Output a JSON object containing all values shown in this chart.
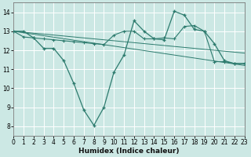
{
  "xlabel": "Humidex (Indice chaleur)",
  "xlim": [
    0,
    23
  ],
  "ylim": [
    7.5,
    14.5
  ],
  "yticks": [
    8,
    9,
    10,
    11,
    12,
    13,
    14
  ],
  "xticks": [
    0,
    1,
    2,
    3,
    4,
    5,
    6,
    7,
    8,
    9,
    10,
    11,
    12,
    13,
    14,
    15,
    16,
    17,
    18,
    19,
    20,
    21,
    22,
    23
  ],
  "bg_color": "#cce8e4",
  "line_color": "#2d7b6e",
  "grid_color": "#ffffff",
  "line1_x": [
    0,
    1,
    2,
    3,
    4,
    5,
    6,
    7,
    8,
    9,
    10,
    11,
    12,
    13,
    14,
    15,
    16,
    17,
    18,
    19,
    20,
    21,
    22,
    23
  ],
  "line1_y": [
    13.0,
    13.0,
    12.65,
    12.1,
    12.1,
    11.45,
    10.25,
    8.85,
    8.05,
    9.0,
    10.85,
    11.75,
    13.55,
    13.0,
    12.6,
    12.55,
    14.05,
    13.85,
    13.1,
    13.0,
    12.35,
    11.45,
    11.3,
    11.3
  ],
  "line2_x": [
    0,
    1,
    2,
    3,
    4,
    5,
    6,
    7,
    8,
    9,
    10,
    11,
    12,
    13,
    14,
    15,
    16,
    17,
    18,
    19,
    20,
    21,
    22,
    23
  ],
  "line2_y": [
    13.0,
    12.7,
    12.65,
    12.6,
    12.55,
    12.5,
    12.45,
    12.4,
    12.35,
    12.3,
    12.8,
    13.0,
    13.0,
    12.6,
    12.6,
    12.65,
    12.6,
    13.25,
    13.3,
    13.0,
    11.4,
    11.4,
    11.3,
    11.3
  ],
  "line3_x": [
    0,
    1,
    2,
    3,
    4,
    5,
    6,
    7,
    8,
    9,
    10,
    11,
    12,
    13,
    14,
    15,
    16,
    17,
    18,
    19,
    20,
    21,
    22,
    23
  ],
  "line3_y": [
    13.0,
    12.95,
    12.9,
    12.85,
    12.8,
    12.75,
    12.7,
    12.65,
    12.6,
    12.55,
    12.5,
    12.45,
    12.4,
    12.35,
    12.3,
    12.25,
    12.2,
    12.15,
    12.1,
    12.05,
    12.0,
    11.95,
    11.9,
    11.85
  ],
  "line4_x": [
    0,
    23
  ],
  "line4_y": [
    13.0,
    11.2
  ]
}
